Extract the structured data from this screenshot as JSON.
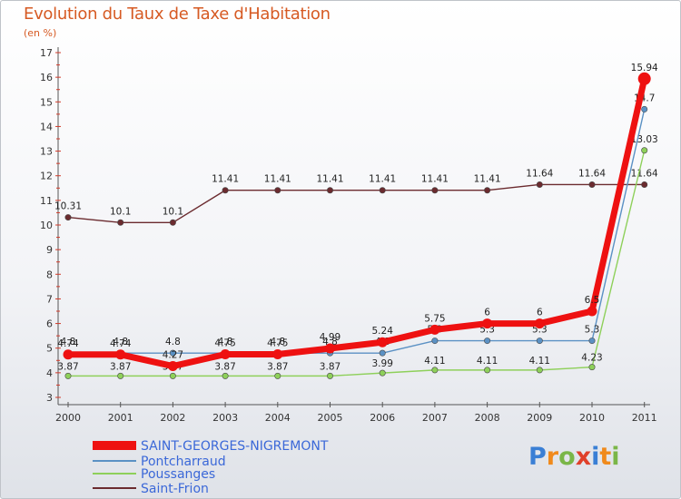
{
  "chart_data": {
    "type": "line",
    "title": "Evolution du Taux de Taxe d'Habitation",
    "ylabel": "(en %)",
    "xlabel": "",
    "categories": [
      "2000",
      "2001",
      "2002",
      "2003",
      "2004",
      "2005",
      "2006",
      "2007",
      "2008",
      "2009",
      "2010",
      "2011"
    ],
    "ylim": [
      3,
      17
    ],
    "yticks": [
      "3",
      "4",
      "5",
      "6",
      "7",
      "8",
      "9",
      "10",
      "11",
      "12",
      "13",
      "14",
      "15",
      "16",
      "17"
    ],
    "series": [
      {
        "name": "Saint-Frion",
        "color": "#6b2b2f",
        "values": [
          10.31,
          10.1,
          10.1,
          11.41,
          11.41,
          11.41,
          11.41,
          11.41,
          11.41,
          11.64,
          11.64,
          11.64
        ],
        "labels": [
          "10.31",
          "10.1",
          "10.1",
          "11.41",
          "11.41",
          "11.41",
          "11.41",
          "11.41",
          "11.41",
          "11.64",
          "11.64",
          "11.64"
        ]
      },
      {
        "name": "Poussanges",
        "color": "#8ed05a",
        "values": [
          3.87,
          3.87,
          3.87,
          3.87,
          3.87,
          3.87,
          3.99,
          4.11,
          4.11,
          4.11,
          4.23,
          13.03
        ],
        "labels": [
          "3.87",
          "3.87",
          "3.87",
          "3.87",
          "3.87",
          "3.87",
          "3.99",
          "4.11",
          "4.11",
          "4.11",
          "4.23",
          "13.03"
        ]
      },
      {
        "name": "Pontcharraud",
        "color": "#5b91c4",
        "values": [
          4.8,
          4.8,
          4.8,
          4.8,
          4.8,
          4.8,
          4.8,
          5.3,
          5.3,
          5.3,
          5.3,
          14.7
        ],
        "labels": [
          "4.8",
          "4.8",
          "4.8",
          "4.8",
          "4.8",
          "4.8",
          "4.8",
          "5.3",
          "5.3",
          "5.3",
          "5.3",
          "14.7"
        ]
      },
      {
        "name": "SAINT-GEORGES-NIGREMONT",
        "color": "#ee1111",
        "values": [
          4.74,
          4.74,
          4.27,
          4.75,
          4.75,
          4.99,
          5.24,
          5.75,
          6.0,
          6.0,
          6.5,
          15.94
        ],
        "labels": [
          "4.74",
          "4.74",
          "4.27",
          "4.75",
          "4.75",
          "4.99",
          "5.24",
          "5.75",
          "6",
          "6",
          "6.5",
          "15.94"
        ]
      }
    ],
    "legend": [
      "SAINT-GEORGES-NIGREMONT",
      "Pontcharraud",
      "Poussanges",
      "Saint-Frion"
    ],
    "legend_position": "bottom-left",
    "grid": false
  },
  "logo": {
    "text": "Proxiti",
    "letters": [
      "P",
      "r",
      "o",
      "x",
      "i",
      "t",
      "i"
    ],
    "colors": [
      "#3a7fd5",
      "#f08a1c",
      "#7ab648",
      "#e0402a",
      "#3a7fd5",
      "#f08a1c",
      "#7ab648"
    ]
  }
}
